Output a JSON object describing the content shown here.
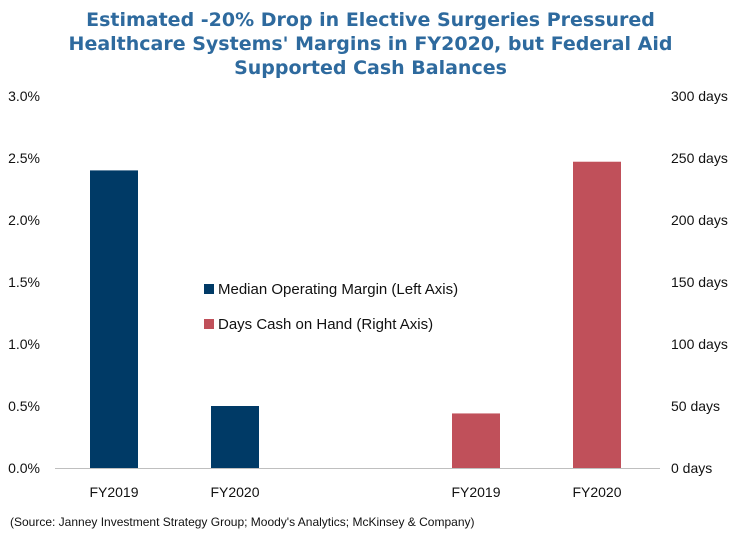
{
  "chart_data": {
    "type": "bar",
    "title_lines": [
      "Estimated -20% Drop in Elective Surgeries Pressured",
      "Healthcare Systems' Margins in FY2020, but Federal Aid",
      "Supported Cash Balances"
    ],
    "left_axis": {
      "ylim": [
        0,
        3.0
      ],
      "ticks": [
        0,
        0.5,
        1.0,
        1.5,
        2.0,
        2.5,
        3.0
      ],
      "tick_labels": [
        "0.0%",
        "0.5%",
        "1.0%",
        "1.5%",
        "2.0%",
        "2.5%",
        "3.0%"
      ]
    },
    "right_axis": {
      "ylim": [
        0,
        300
      ],
      "ticks": [
        0,
        50,
        100,
        150,
        200,
        250,
        300
      ],
      "tick_labels": [
        "0 days",
        "50 days",
        "100 days",
        "150 days",
        "200 days",
        "250 days",
        "300 days"
      ]
    },
    "series": [
      {
        "name": "Median Operating Margin (Left Axis)",
        "axis": "left",
        "color": "#003a66",
        "categories": [
          "FY2019",
          "FY2020"
        ],
        "values": [
          2.4,
          0.5
        ]
      },
      {
        "name": "Days Cash on Hand (Right Axis)",
        "axis": "right",
        "color": "#c0505a",
        "categories": [
          "FY2019",
          "FY2020"
        ],
        "values": [
          44,
          247
        ]
      }
    ],
    "grid": false,
    "legend_position": "center"
  },
  "source_note": "(Source: Janney Investment Strategy Group; Moody's Analytics; McKinsey & Company)"
}
